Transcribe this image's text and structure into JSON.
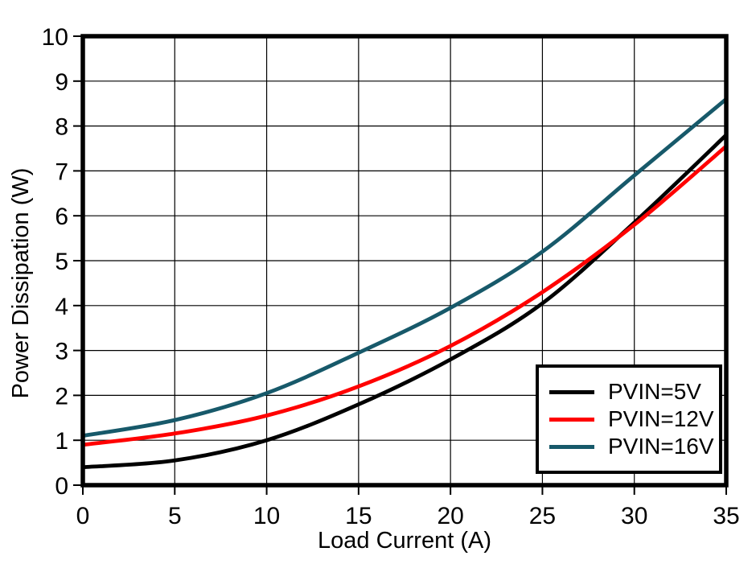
{
  "chart_data": {
    "type": "line",
    "title": "",
    "xlabel": "Load Current (A)",
    "ylabel": "Power Dissipation (W)",
    "xlim": [
      0,
      35
    ],
    "ylim": [
      0,
      10
    ],
    "x_ticks": [
      "0",
      "5",
      "10",
      "15",
      "20",
      "25",
      "30",
      "35"
    ],
    "y_ticks": [
      "0",
      "1",
      "2",
      "3",
      "4",
      "5",
      "6",
      "7",
      "8",
      "9",
      "10"
    ],
    "grid": true,
    "legend_position": "lower right",
    "x": [
      0,
      5,
      10,
      15,
      20,
      25,
      30,
      35
    ],
    "series": [
      {
        "name": "PVIN=5V",
        "color": "#000000",
        "values": [
          0.4,
          0.55,
          1.0,
          1.8,
          2.8,
          4.05,
          5.85,
          7.8
        ]
      },
      {
        "name": "PVIN=12V",
        "color": "#ff0000",
        "values": [
          0.9,
          1.15,
          1.55,
          2.2,
          3.1,
          4.3,
          5.8,
          7.55
        ]
      },
      {
        "name": "PVIN=16V",
        "color": "#17596a",
        "values": [
          1.1,
          1.45,
          2.05,
          2.95,
          3.95,
          5.2,
          6.9,
          8.6
        ]
      }
    ]
  },
  "colors": {
    "frame": "#000000",
    "grid": "#000000",
    "background": "#ffffff",
    "text": "#000000"
  }
}
